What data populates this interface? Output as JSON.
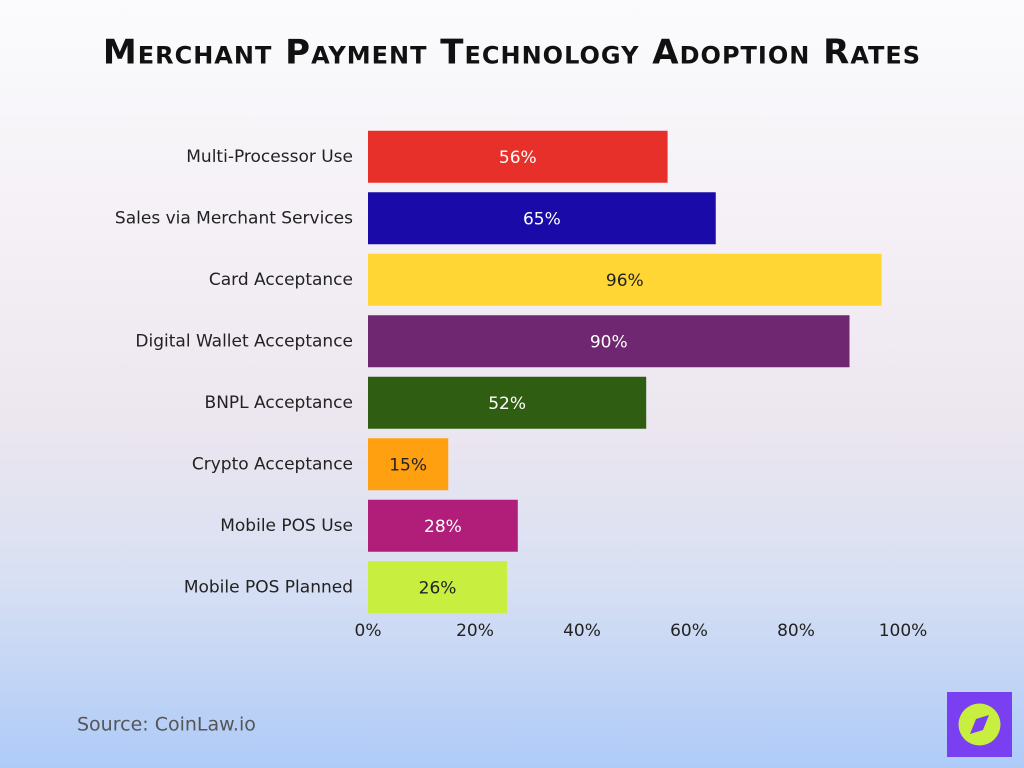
{
  "chart_data": {
    "type": "bar",
    "orientation": "horizontal",
    "title": "Merchant Payment Technology Adoption Rates",
    "categories": [
      "Multi-Processor Use",
      "Sales via Merchant Services",
      "Card Acceptance",
      "Digital Wallet Acceptance",
      "BNPL Acceptance",
      "Crypto Acceptance",
      "Mobile POS Use",
      "Mobile POS Planned"
    ],
    "values": [
      56,
      65,
      96,
      90,
      52,
      15,
      28,
      26
    ],
    "value_labels": [
      "56%",
      "65%",
      "96%",
      "90%",
      "52%",
      "15%",
      "28%",
      "26%"
    ],
    "colors": [
      "#e8302a",
      "#1a0aa8",
      "#ffd633",
      "#6e2770",
      "#2f5e12",
      "#ffa010",
      "#b01e7a",
      "#c8ee40"
    ],
    "xlim": [
      0,
      100
    ],
    "xticks": [
      {
        "value": 0,
        "label": "0%"
      },
      {
        "value": 20,
        "label": "20%"
      },
      {
        "value": 40,
        "label": "40%"
      },
      {
        "value": 60,
        "label": "60%"
      },
      {
        "value": 80,
        "label": "80%"
      },
      {
        "value": 100,
        "label": "100%"
      }
    ],
    "grid": false,
    "source": "Source: CoinLaw.io"
  }
}
